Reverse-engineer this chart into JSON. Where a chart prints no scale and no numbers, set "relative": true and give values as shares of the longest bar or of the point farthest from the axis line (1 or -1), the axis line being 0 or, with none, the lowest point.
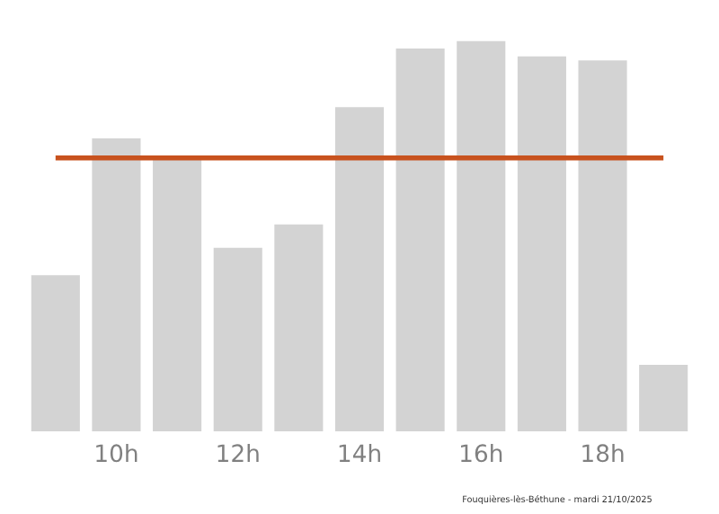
{
  "chart_data": {
    "type": "bar",
    "relative": true,
    "categories": [
      null,
      "10h",
      null,
      "12h",
      null,
      "14h",
      null,
      "16h",
      null,
      "18h",
      null
    ],
    "values": [
      0.4,
      0.75,
      0.7,
      0.47,
      0.53,
      0.83,
      0.98,
      1,
      0.96,
      0.95,
      0.17
    ],
    "color": "#d3d3d3",
    "ref_lines": [
      {
        "axis": "y",
        "value": 0.7,
        "color": "#c8521e"
      }
    ],
    "annotations": [
      "Fouquières-lès-Béthune - mardi 21/10/2025"
    ],
    "grid": false,
    "legend": false
  }
}
